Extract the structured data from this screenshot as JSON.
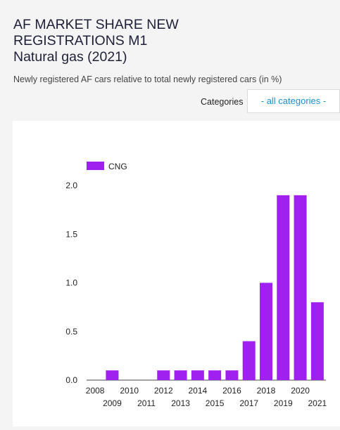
{
  "header": {
    "title_lines": [
      "AF MARKET SHARE NEW",
      "REGISTRATIONS M1",
      "Natural gas (2021)"
    ],
    "subtitle": "Newly registered AF cars relative to total newly registered cars (in %)"
  },
  "filter": {
    "label": "Categories",
    "selected": "- all categories -"
  },
  "colors": {
    "bar": "#a020f0",
    "background": "#f4f4f4",
    "link": "#1a8fd0"
  },
  "chart_data": {
    "type": "bar",
    "categories": [
      "2008",
      "2009",
      "2010",
      "2011",
      "2012",
      "2013",
      "2014",
      "2015",
      "2016",
      "2017",
      "2018",
      "2019",
      "2020",
      "2021"
    ],
    "series": [
      {
        "name": "CNG",
        "values": [
          0,
          0.1,
          0,
          0,
          0.1,
          0.1,
          0.1,
          0.1,
          0.1,
          0.4,
          1.0,
          1.9,
          1.9,
          0.8
        ]
      }
    ],
    "ylim": [
      0,
      2.0
    ],
    "yticks": [
      "0.0",
      "0.5",
      "1.0",
      "1.5",
      "2.0"
    ],
    "ytick_values": [
      0,
      0.5,
      1.0,
      1.5,
      2.0
    ],
    "grid": false,
    "legend": "top-left",
    "xlabel": "",
    "ylabel": ""
  }
}
